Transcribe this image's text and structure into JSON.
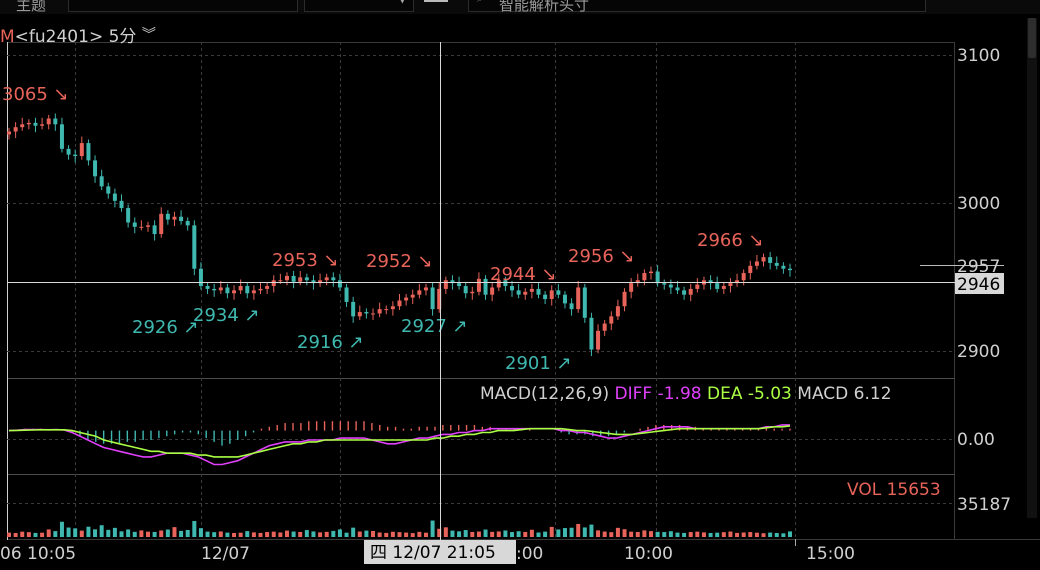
{
  "toolbar": {
    "left_label": "主题",
    "search_placeholder": "智能解析头寸"
  },
  "header": {
    "mode": "M",
    "symbol": "<fu2401>",
    "period": "5分",
    "period_icon": "double-chevron-down-icon"
  },
  "macd_header": {
    "params": "MACD(12,26,9)",
    "diff_label": "DIFF",
    "diff_value": "-1.98",
    "dea_label": "DEA",
    "dea_value": "-5.03",
    "macd_label": "MACD",
    "macd_value": "6.12"
  },
  "vol_header": {
    "text": "VOL 15653"
  },
  "crosshair_time": "四 12/07 21:05",
  "price_axis": {
    "ticks": [
      "3100",
      "3000",
      "2900"
    ],
    "last_price": "2957",
    "cursor_price": "2946",
    "macd_tick": "0.00",
    "vol_tick": "35187"
  },
  "time_axis": [
    "06 10:05",
    "12/07",
    ":00",
    "10:00",
    "15:00"
  ],
  "colors": {
    "up": "#e8645a",
    "down": "#3fb8b0",
    "diff": "#e040fb",
    "dea": "#aaff44",
    "grid": "#3a3a3a"
  },
  "chart_data": {
    "type": "candlestick",
    "symbol": "fu2401",
    "interval": "5分",
    "y_range": [
      2883,
      3115
    ],
    "annotations": [
      {
        "label": "3065",
        "kind": "high",
        "value": 3065
      },
      {
        "label": "2926",
        "kind": "low",
        "value": 2926
      },
      {
        "label": "2934",
        "kind": "low",
        "value": 2934
      },
      {
        "label": "2953",
        "kind": "high",
        "value": 2953
      },
      {
        "label": "2916",
        "kind": "low",
        "value": 2916
      },
      {
        "label": "2952",
        "kind": "high",
        "value": 2952
      },
      {
        "label": "2927",
        "kind": "low",
        "value": 2927
      },
      {
        "label": "2944",
        "kind": "high",
        "value": 2944
      },
      {
        "label": "2901",
        "kind": "low",
        "value": 2901
      },
      {
        "label": "2956",
        "kind": "high",
        "value": 2956
      },
      {
        "label": "2966",
        "kind": "high",
        "value": 2966
      }
    ],
    "close_path": [
      3053,
      3056,
      3058,
      3059,
      3057,
      3058,
      3062,
      3058,
      3041,
      3037,
      3036,
      3045,
      3033,
      3022,
      3015,
      3010,
      3005,
      3000,
      2990,
      2987,
      2987,
      2988,
      2982,
      2996,
      2992,
      2994,
      2991,
      2988,
      2958,
      2946,
      2944,
      2943,
      2945,
      2941,
      2943,
      2946,
      2941,
      2943,
      2944,
      2946,
      2950,
      2950,
      2953,
      2949,
      2952,
      2950,
      2948,
      2950,
      2952,
      2950,
      2945,
      2935,
      2925,
      2928,
      2927,
      2927,
      2930,
      2930,
      2932,
      2936,
      2938,
      2940,
      2943,
      2945,
      2930,
      2944,
      2950,
      2948,
      2946,
      2941,
      2942,
      2951,
      2940,
      2945,
      2950,
      2946,
      2943,
      2940,
      2942,
      2944,
      2940,
      2937,
      2943,
      2940,
      2934,
      2930,
      2945,
      2924,
      2902,
      2915,
      2920,
      2925,
      2932,
      2942,
      2948,
      2950,
      2955,
      2956,
      2948,
      2947,
      2945,
      2943,
      2940,
      2944,
      2947,
      2950,
      2948,
      2944,
      2946,
      2948,
      2950,
      2955,
      2960,
      2963,
      2966,
      2962,
      2960,
      2958,
      2957
    ]
  },
  "macd_data": {
    "range": [
      -22,
      12
    ],
    "diff": [
      0,
      0.2,
      0.5,
      0.6,
      0.5,
      0.4,
      0.5,
      0.3,
      -1,
      -3,
      -5,
      -7,
      -9,
      -10,
      -11,
      -12,
      -13,
      -14,
      -14,
      -13,
      -12,
      -12,
      -12,
      -13,
      -14,
      -16,
      -18,
      -18,
      -17,
      -16,
      -14,
      -12,
      -10,
      -8,
      -7,
      -6,
      -6,
      -6,
      -5,
      -5,
      -5,
      -5,
      -4,
      -4,
      -4,
      -4,
      -5,
      -6,
      -7,
      -7,
      -6,
      -5,
      -4,
      -4,
      -3,
      -2,
      -2,
      -1,
      -1,
      0,
      0,
      1,
      1,
      1,
      1,
      1,
      1,
      1,
      1,
      1,
      0,
      0,
      -1,
      -1,
      -2,
      -3,
      -4,
      -4,
      -3,
      -2,
      -1,
      0,
      1,
      2,
      2,
      2,
      2,
      1,
      1,
      1,
      1,
      1,
      1,
      1,
      1,
      1,
      2,
      2,
      3,
      3
    ],
    "dea": [
      0,
      0.1,
      0.2,
      0.3,
      0.4,
      0.4,
      0.4,
      0.4,
      0,
      -1,
      -2,
      -3,
      -5,
      -6,
      -7,
      -8,
      -9,
      -10,
      -11,
      -11,
      -12,
      -12,
      -12,
      -12,
      -13,
      -13,
      -14,
      -14,
      -14,
      -14,
      -13,
      -12,
      -11,
      -10,
      -9,
      -8,
      -7,
      -7,
      -6,
      -6,
      -5,
      -5,
      -5,
      -5,
      -5,
      -5,
      -5,
      -5,
      -5,
      -5,
      -5,
      -5,
      -5,
      -5,
      -4,
      -4,
      -3,
      -3,
      -2,
      -2,
      -1,
      -1,
      0,
      0,
      0,
      0.5,
      1,
      1,
      1,
      1,
      1,
      0.5,
      0,
      0,
      -0.5,
      -1,
      -1.5,
      -2,
      -2,
      -2,
      -1.5,
      -1,
      -0.5,
      0,
      0.5,
      1,
      1,
      1,
      1,
      1,
      1,
      1,
      1,
      1,
      1,
      1,
      1.5,
      2,
      2,
      2.5
    ],
    "hist": [
      0,
      0,
      1,
      1,
      1,
      0,
      0,
      0,
      -1,
      -3,
      -5,
      -6,
      -7,
      -7,
      -7,
      -6,
      -6,
      -5,
      -5,
      -4,
      -3,
      -2,
      -1,
      -1,
      -2,
      -4,
      -6,
      -8,
      -7,
      -5,
      -3,
      -1,
      1,
      2,
      3,
      4,
      4,
      4,
      5,
      5,
      5,
      5,
      5,
      5,
      5,
      5,
      4,
      3,
      2,
      2,
      1,
      1,
      2,
      2,
      2,
      3,
      3,
      3,
      3,
      3,
      2,
      2,
      1,
      1,
      1,
      1,
      1,
      0,
      0,
      0,
      -1,
      -2,
      -2,
      -2,
      -3,
      -3,
      -3,
      -2,
      -1,
      0,
      1,
      2,
      3,
      3,
      3,
      3,
      2,
      2,
      1,
      1,
      1,
      1,
      1,
      1,
      1,
      1,
      1,
      1,
      1,
      1
    ]
  },
  "vol_data": {
    "max": 35187,
    "values": [
      4200,
      3800,
      5100,
      4600,
      3900,
      4100,
      7200,
      5600,
      14500,
      9000,
      8200,
      6100,
      9800,
      7300,
      11200,
      6800,
      8700,
      5400,
      7200,
      4900,
      6300,
      5100,
      4800,
      6200,
      7100,
      9400,
      5800,
      6700,
      15200,
      8400,
      5100,
      4600,
      5300,
      4200,
      3800,
      4100,
      5600,
      4400,
      3900,
      4700,
      5100,
      4300,
      6100,
      5200,
      4800,
      6600,
      5300,
      4400,
      4900,
      5800,
      7200,
      4100,
      8900,
      5200,
      6100,
      5700,
      4300,
      3900,
      5000,
      4600,
      4200,
      3700,
      4900,
      4100,
      15653,
      7800,
      9200,
      6100,
      5400,
      6600,
      4800,
      5200,
      7100,
      4900,
      5300,
      6200,
      4700,
      5500,
      4800,
      6900,
      4300,
      5100,
      9600,
      7200,
      8500,
      8800,
      12400,
      9100,
      11800,
      6300,
      5200,
      4600,
      8700,
      7400,
      5100,
      4800,
      6300,
      5600,
      4900,
      4700,
      5500,
      4200,
      3900,
      4700,
      5100,
      4400,
      3800,
      4100,
      4600,
      5200,
      3900,
      4300,
      4700,
      4100,
      3600,
      4200,
      3800,
      3500,
      5300
    ]
  }
}
